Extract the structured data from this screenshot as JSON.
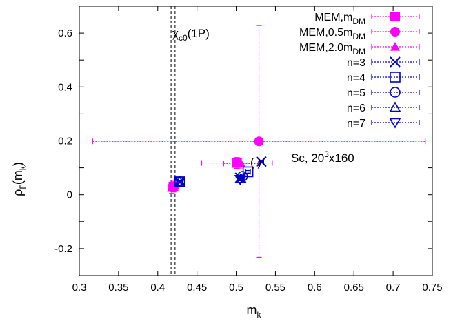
{
  "chart_data": {
    "type": "scatter",
    "title": "",
    "xlabel": "m_k",
    "ylabel": "ρ_Γ(m_k)",
    "xlim": [
      0.3,
      0.75
    ],
    "ylim": [
      -0.3,
      0.7
    ],
    "x_ticks": [
      "0.3",
      "0.35",
      "0.4",
      "0.45",
      "0.5",
      "0.55",
      "0.6",
      "0.65",
      "0.7",
      "0.75"
    ],
    "y_ticks": [
      "-0.2",
      "0",
      "0.2",
      "0.4",
      "0.6"
    ],
    "grid": false,
    "legend_position": "top-right",
    "vertical_lines": [
      {
        "x": 0.417,
        "style": "dashed",
        "color": "#555555"
      },
      {
        "x": 0.422,
        "style": "dashed",
        "color": "#555555"
      }
    ],
    "annotations": {
      "line_label": {
        "main": "χ",
        "sub": "c0",
        "rest": "(1P)"
      },
      "point_label": "( )",
      "lattice_label": {
        "pre": "Sc, 20",
        "sup": "3",
        "post": "x160"
      }
    },
    "colors": {
      "magenta": "#ff00ff",
      "blue": "#0000cc"
    },
    "series": [
      {
        "name": "MEM,m",
        "sub": "DM",
        "marker": "square",
        "color": "#ff00ff",
        "points": [
          {
            "x": 0.42,
            "y": 0.03,
            "xerr": 0.006,
            "yerr": 0.02
          },
          {
            "x": 0.501,
            "y": 0.118,
            "xerr": 0.045,
            "yerr": 0.02
          }
        ]
      },
      {
        "name": "MEM,0.5m",
        "sub": "DM",
        "marker": "circle",
        "color": "#ff00ff",
        "points": [
          {
            "x": 0.529,
            "y": 0.198,
            "xerr": 0.212,
            "yerr": 0.43
          }
        ]
      },
      {
        "name": "MEM,2.0m",
        "sub": "DM",
        "marker": "triangle-up",
        "color": "#ff00ff",
        "points": [
          {
            "x": 0.418,
            "y": 0.025,
            "xerr": 0.005,
            "yerr": 0.02
          },
          {
            "x": 0.506,
            "y": 0.116,
            "xerr": 0.022,
            "yerr": 0.02
          }
        ]
      },
      {
        "name": "n=3",
        "sub": "",
        "marker": "cross",
        "color": "#0000cc",
        "points": [
          {
            "x": 0.428,
            "y": 0.048,
            "xerr": 0.003,
            "yerr": 0.005
          },
          {
            "x": 0.532,
            "y": 0.123,
            "xerr": 0.003,
            "yerr": 0.005
          },
          {
            "x": 0.505,
            "y": 0.063,
            "xerr": 0.003,
            "yerr": 0.005
          }
        ]
      },
      {
        "name": "n=4",
        "sub": "",
        "marker": "square-open",
        "color": "#0000cc",
        "points": [
          {
            "x": 0.428,
            "y": 0.048,
            "xerr": 0.003,
            "yerr": 0.005
          },
          {
            "x": 0.515,
            "y": 0.085,
            "xerr": 0.003,
            "yerr": 0.005
          }
        ]
      },
      {
        "name": "n=5",
        "sub": "",
        "marker": "circle-open",
        "color": "#0000cc",
        "points": [
          {
            "x": 0.428,
            "y": 0.048,
            "xerr": 0.003,
            "yerr": 0.005
          },
          {
            "x": 0.508,
            "y": 0.068,
            "xerr": 0.003,
            "yerr": 0.005
          }
        ]
      },
      {
        "name": "n=6",
        "sub": "",
        "marker": "triangle-open",
        "color": "#0000cc",
        "points": [
          {
            "x": 0.428,
            "y": 0.048,
            "xerr": 0.003,
            "yerr": 0.005
          },
          {
            "x": 0.506,
            "y": 0.06,
            "xerr": 0.003,
            "yerr": 0.005
          }
        ]
      },
      {
        "name": "n=7",
        "sub": "",
        "marker": "triangle-down-open",
        "color": "#0000cc",
        "points": [
          {
            "x": 0.428,
            "y": 0.048,
            "xerr": 0.003,
            "yerr": 0.005
          },
          {
            "x": 0.505,
            "y": 0.057,
            "xerr": 0.003,
            "yerr": 0.005
          }
        ]
      }
    ]
  }
}
